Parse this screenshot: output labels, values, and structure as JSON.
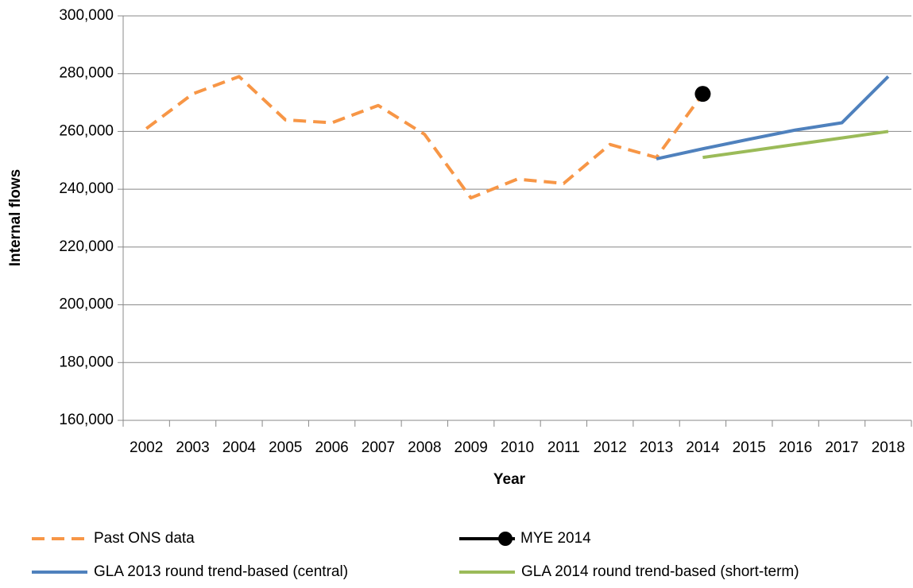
{
  "chart_data": {
    "type": "line",
    "x_label": "Year",
    "y_label": "Internal flows",
    "categories": [
      "2002",
      "2003",
      "2004",
      "2005",
      "2006",
      "2007",
      "2008",
      "2009",
      "2010",
      "2011",
      "2012",
      "2013",
      "2014",
      "2015",
      "2016",
      "2017",
      "2018"
    ],
    "ylim": [
      160000,
      300000
    ],
    "yticks": [
      {
        "value": 160000,
        "label": "160,000"
      },
      {
        "value": 180000,
        "label": "180,000"
      },
      {
        "value": 200000,
        "label": "200,000"
      },
      {
        "value": 220000,
        "label": "220,000"
      },
      {
        "value": 240000,
        "label": "240,000"
      },
      {
        "value": 260000,
        "label": "260,000"
      },
      {
        "value": 280000,
        "label": "280,000"
      },
      {
        "value": 300000,
        "label": "300,000"
      }
    ],
    "grid": true,
    "legend": "bottom",
    "series": [
      {
        "name": "Past ONS data",
        "color": "#f79646",
        "style": "dashed",
        "values": [
          261000,
          273000,
          279000,
          264000,
          263000,
          269000,
          259000,
          237000,
          243500,
          242000,
          255500,
          251000,
          273000,
          null,
          null,
          null,
          null
        ]
      },
      {
        "name": "MYE 2014",
        "color": "#000000",
        "style": "solid",
        "marker": "circle",
        "values": [
          null,
          null,
          null,
          null,
          null,
          null,
          null,
          null,
          null,
          null,
          null,
          null,
          273000,
          null,
          null,
          null,
          null
        ]
      },
      {
        "name": "GLA 2013 round trend-based (central)",
        "color": "#4f81bd",
        "style": "solid",
        "values": [
          null,
          null,
          null,
          null,
          null,
          null,
          null,
          null,
          null,
          null,
          null,
          250500,
          254000,
          257300,
          260500,
          263000,
          279000
        ]
      },
      {
        "name": "GLA 2014 round trend-based (short-term)",
        "color": "#9bbb59",
        "style": "solid",
        "values": [
          null,
          null,
          null,
          null,
          null,
          null,
          null,
          null,
          null,
          null,
          null,
          null,
          251000,
          253250,
          255500,
          257750,
          260000
        ]
      }
    ]
  }
}
